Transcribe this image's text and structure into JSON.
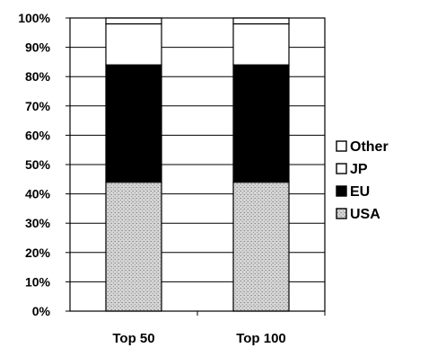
{
  "chart_data": {
    "type": "bar",
    "stacked": true,
    "percent": true,
    "categories": [
      "Top 50",
      "Top 100"
    ],
    "series": [
      {
        "name": "USA",
        "values": [
          44,
          44
        ],
        "color": "#c8c8c8",
        "pattern": "stipple"
      },
      {
        "name": "EU",
        "values": [
          40,
          40
        ],
        "color": "#000000"
      },
      {
        "name": "JP",
        "values": [
          14,
          14
        ],
        "color": "#ffffff"
      },
      {
        "name": "Other",
        "values": [
          2,
          2
        ],
        "color": "#ffffff"
      }
    ],
    "ylim": [
      0,
      100
    ],
    "y_ticks": [
      "0%",
      "10%",
      "20%",
      "30%",
      "40%",
      "50%",
      "60%",
      "70%",
      "80%",
      "90%",
      "100%"
    ],
    "grid": true,
    "legend": {
      "position": "right",
      "order": [
        "Other",
        "JP",
        "EU",
        "USA"
      ]
    }
  }
}
